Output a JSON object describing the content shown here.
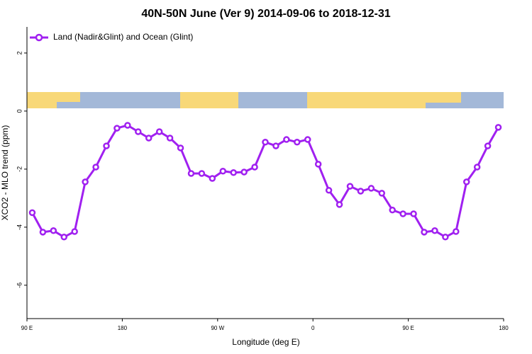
{
  "chart_data": {
    "type": "line",
    "title": "40N-50N June (Ver 9)   2014-09-06 to 2018-12-31",
    "x_label": "Longitude (deg E)",
    "y_label": "XCO2 - MLO trend (ppm)",
    "x": [
      95,
      105,
      115,
      125,
      135,
      145,
      155,
      165,
      175,
      185,
      195,
      205,
      215,
      225,
      235,
      245,
      255,
      265,
      275,
      285,
      295,
      305,
      315,
      325,
      335,
      345,
      355,
      365,
      375,
      385,
      395,
      405,
      415,
      425,
      435,
      445,
      455,
      465,
      475,
      485,
      495,
      505,
      515,
      525,
      535
    ],
    "series": [
      {
        "name": "Land (Nadir&Glint) and Ocean (Glint)",
        "color": "#a020f0",
        "values": [
          -3.5,
          -4.17,
          -4.12,
          -4.34,
          -4.15,
          -2.44,
          -1.93,
          -1.2,
          -0.59,
          -0.49,
          -0.71,
          -0.93,
          -0.71,
          -0.93,
          -1.27,
          -2.15,
          -2.15,
          -2.32,
          -2.07,
          -2.12,
          -2.1,
          -1.93,
          -1.07,
          -1.2,
          -0.98,
          -1.07,
          -0.98,
          -1.83,
          -2.73,
          -3.22,
          -2.59,
          -2.76,
          -2.66,
          -2.83,
          -3.41,
          -3.54,
          -3.54,
          -4.17,
          -4.12,
          -4.34,
          -4.15,
          -2.44,
          -1.93,
          -1.2,
          -0.56
        ]
      }
    ],
    "xlim": [
      90,
      540
    ],
    "xticks": [
      {
        "value": 90,
        "label": "90 E"
      },
      180,
      {
        "value": 270,
        "label": "90 W"
      },
      {
        "value": 360,
        "label": "0"
      },
      {
        "value": 450,
        "label": "90 E"
      },
      {
        "value": 540,
        "label": "180"
      }
    ],
    "ylim": [
      -7.15,
      2.9
    ],
    "yticks": [
      -6,
      -4,
      -2,
      0,
      2
    ],
    "legend": "top-left"
  }
}
